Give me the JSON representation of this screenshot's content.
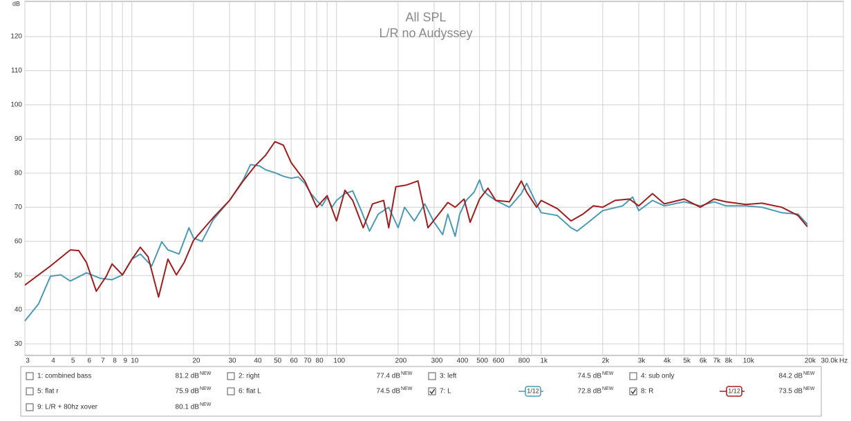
{
  "chart_data": {
    "type": "line",
    "title": "All SPL",
    "subtitle": "L/R no Audyssey",
    "y_label": "dB",
    "x_label": "Hz",
    "log_x": true,
    "grid": true,
    "xlim": [
      3,
      30000
    ],
    "ylim": [
      26.6,
      130.3
    ],
    "yticks": [
      30,
      40,
      50,
      60,
      70,
      80,
      90,
      100,
      110,
      120
    ],
    "xticks": [
      3,
      4,
      5,
      6,
      7,
      8,
      9,
      10,
      20,
      30,
      40,
      50,
      60,
      70,
      80,
      100,
      200,
      300,
      400,
      500,
      600,
      800,
      {
        "value": 1000,
        "label": "1k"
      },
      {
        "value": 2000,
        "label": "2k"
      },
      {
        "value": 3000,
        "label": "3k"
      },
      {
        "value": 4000,
        "label": "4k"
      },
      {
        "value": 5000,
        "label": "5k"
      },
      {
        "value": 6000,
        "label": "6k"
      },
      {
        "value": 7000,
        "label": "7k"
      },
      {
        "value": 8000,
        "label": "8k"
      },
      {
        "value": 10000,
        "label": "10k"
      },
      {
        "value": 20000,
        "label": "20k"
      },
      {
        "value": 30000,
        "label": "30.0k"
      }
    ],
    "xminor": [
      90,
      700,
      900,
      9000
    ],
    "new_tag": "NEW",
    "smoothing": "1/12",
    "series": [
      {
        "name": "1: combined bass",
        "color": "#2e8b2e",
        "level": "81.2 dB",
        "checked": false
      },
      {
        "name": "2: right",
        "color": "#4b3fa0",
        "level": "77.4 dB",
        "checked": false
      },
      {
        "name": "3: left",
        "color": "#8a3ea0",
        "level": "74.5 dB",
        "checked": false
      },
      {
        "name": "4: sub only",
        "color": "#2a7a8a",
        "level": "84.2 dB",
        "checked": false
      },
      {
        "name": "5: flat r",
        "color": "#2e8b2e",
        "level": "75.9 dB",
        "checked": false
      },
      {
        "name": "6: flat L",
        "color": "#8a3ea0",
        "level": "74.5 dB",
        "checked": false
      },
      {
        "name": "7: L",
        "color": "#4a9ab5",
        "level": "72.8 dB",
        "checked": true,
        "x": [
          3,
          3.5,
          4,
          4.5,
          5,
          6,
          7,
          8,
          9,
          10,
          11,
          12.5,
          14,
          15,
          17,
          19,
          20,
          22,
          25,
          30,
          35,
          38,
          42,
          45,
          50,
          55,
          60,
          65,
          70,
          75,
          80,
          85,
          90,
          95,
          100,
          110,
          120,
          130,
          145,
          160,
          180,
          200,
          215,
          240,
          270,
          300,
          330,
          350,
          380,
          400,
          430,
          470,
          500,
          520,
          550,
          600,
          700,
          800,
          850,
          950,
          1000,
          1200,
          1400,
          1500,
          1700,
          2000,
          2500,
          2800,
          3000,
          3500,
          4000,
          5000,
          6000,
          7000,
          8000,
          10000,
          12000,
          15000,
          18000,
          20000
        ],
        "values": [
          36.7,
          41.7,
          49.8,
          50.2,
          48.4,
          50.8,
          49.2,
          48.8,
          50.2,
          54.8,
          56.3,
          52.8,
          59.9,
          57.5,
          56.3,
          64,
          61,
          60,
          66.4,
          72,
          78,
          82.5,
          82.1,
          81,
          80.1,
          79.1,
          78.5,
          78.9,
          77,
          74,
          72,
          70.4,
          73,
          70,
          72,
          74,
          74.8,
          70,
          63,
          68,
          70,
          64,
          70,
          66,
          71,
          65.6,
          62,
          68,
          61.5,
          68,
          72,
          74.4,
          78,
          75,
          73.6,
          72,
          70,
          74,
          77,
          71,
          68.4,
          67.6,
          64,
          63,
          65.6,
          69,
          70.4,
          73,
          69,
          72,
          70.4,
          71.6,
          70.4,
          71.6,
          70.4,
          70.4,
          70,
          68.4,
          68,
          65
        ]
      },
      {
        "name": "8: R",
        "color": "#a01c1c",
        "level": "73.5 dB",
        "checked": true,
        "x": [
          3,
          4,
          5,
          5.5,
          6,
          6.7,
          7.5,
          8,
          9,
          10,
          11,
          12,
          13.5,
          15,
          16.5,
          18,
          20,
          25,
          30,
          35,
          40,
          45,
          50,
          55,
          60,
          70,
          80,
          90,
          100,
          110,
          120,
          135,
          150,
          170,
          180,
          195,
          220,
          250,
          280,
          320,
          350,
          380,
          420,
          450,
          500,
          550,
          600,
          700,
          800,
          850,
          950,
          1000,
          1200,
          1400,
          1600,
          1800,
          2000,
          2300,
          2700,
          3000,
          3500,
          4000,
          5000,
          6000,
          7000,
          8000,
          10000,
          12000,
          15000,
          18000,
          20000
        ],
        "values": [
          47.2,
          52.8,
          57.5,
          57.3,
          53.8,
          45.4,
          49.8,
          53.4,
          50.2,
          54.8,
          58.3,
          55.5,
          43.7,
          54.8,
          50.2,
          53.8,
          60.3,
          67,
          72,
          77.7,
          82.1,
          85.2,
          89.2,
          88.2,
          83.1,
          77.7,
          70,
          73.4,
          66,
          75,
          72,
          64,
          71,
          72,
          64,
          76,
          76.5,
          77.7,
          64,
          68.4,
          71.4,
          70,
          72.4,
          65.6,
          72.4,
          75.6,
          72,
          71.6,
          77.7,
          74.4,
          70,
          72,
          69.6,
          66,
          68,
          70.4,
          70,
          72,
          72.4,
          70.4,
          74,
          71,
          72.4,
          70,
          72.4,
          71.6,
          70.8,
          71.2,
          70,
          67.6,
          64.3
        ]
      },
      {
        "name": "9: L/R + 80hz xover",
        "color": "#2e8b2e",
        "level": "80.1 dB",
        "checked": false
      }
    ]
  }
}
